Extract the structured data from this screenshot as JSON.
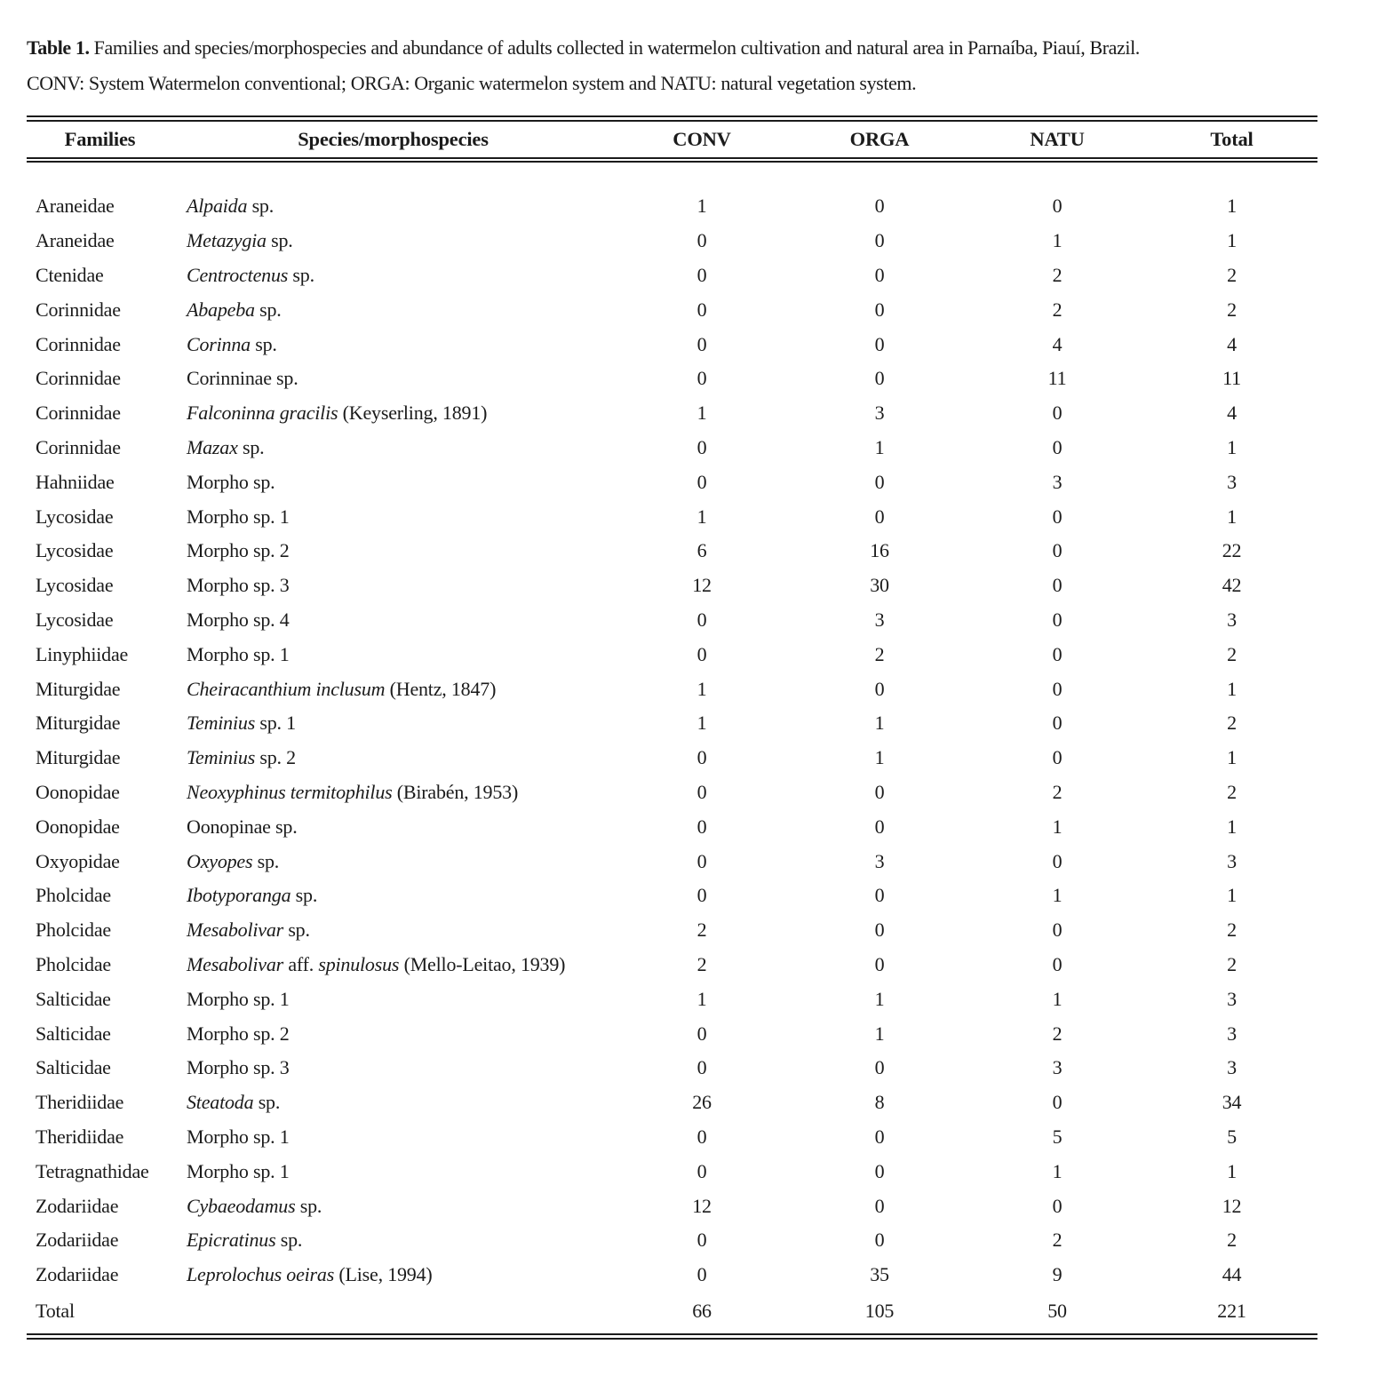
{
  "caption": {
    "label": "Table 1.",
    "line1": " Families and species/morphospecies and abundance of adults collected in watermelon cultivation and natural area in Parnaíba, Piauí, Brazil.",
    "line2": "CONV: System Watermelon conventional; ORGA: Organic watermelon system and NATU: natural vegetation system."
  },
  "table": {
    "headers": [
      "Families",
      "Species/morphospecies",
      "CONV",
      "ORGA",
      "NATU",
      "Total"
    ],
    "rows": [
      {
        "family": "Araneidae",
        "species": [
          [
            "Alpaida",
            true
          ],
          [
            " sp.",
            false
          ]
        ],
        "values": [
          "1",
          "0",
          "0",
          "1"
        ]
      },
      {
        "family": "Araneidae",
        "species": [
          [
            "Metazygia",
            true
          ],
          [
            " sp.",
            false
          ]
        ],
        "values": [
          "0",
          "0",
          "1",
          "1"
        ]
      },
      {
        "family": "Ctenidae",
        "species": [
          [
            "Centroctenus",
            true
          ],
          [
            " sp.",
            false
          ]
        ],
        "values": [
          "0",
          "0",
          "2",
          "2"
        ]
      },
      {
        "family": "Corinnidae",
        "species": [
          [
            "Abapeba",
            true
          ],
          [
            " sp.",
            false
          ]
        ],
        "values": [
          "0",
          "0",
          "2",
          "2"
        ]
      },
      {
        "family": "Corinnidae",
        "species": [
          [
            "Corinna",
            true
          ],
          [
            " sp.",
            false
          ]
        ],
        "values": [
          "0",
          "0",
          "4",
          "4"
        ]
      },
      {
        "family": "Corinnidae",
        "species": [
          [
            "Corinninae sp.",
            false
          ]
        ],
        "values": [
          "0",
          "0",
          "11",
          "11"
        ]
      },
      {
        "family": "Corinnidae",
        "species": [
          [
            "Falconinna gracilis",
            true
          ],
          [
            " (Keyserling, 1891)",
            false
          ]
        ],
        "values": [
          "1",
          "3",
          "0",
          "4"
        ]
      },
      {
        "family": "Corinnidae",
        "species": [
          [
            "Mazax",
            true
          ],
          [
            " sp.",
            false
          ]
        ],
        "values": [
          "0",
          "1",
          "0",
          "1"
        ]
      },
      {
        "family": "Hahniidae",
        "species": [
          [
            "Morpho sp.",
            false
          ]
        ],
        "values": [
          "0",
          "0",
          "3",
          "3"
        ]
      },
      {
        "family": "Lycosidae",
        "species": [
          [
            "Morpho sp. 1",
            false
          ]
        ],
        "values": [
          "1",
          "0",
          "0",
          "1"
        ]
      },
      {
        "family": "Lycosidae",
        "species": [
          [
            "Morpho sp. 2",
            false
          ]
        ],
        "values": [
          "6",
          "16",
          "0",
          "22"
        ]
      },
      {
        "family": "Lycosidae",
        "species": [
          [
            "Morpho sp. 3",
            false
          ]
        ],
        "values": [
          "12",
          "30",
          "0",
          "42"
        ]
      },
      {
        "family": "Lycosidae",
        "species": [
          [
            "Morpho sp. 4",
            false
          ]
        ],
        "values": [
          "0",
          "3",
          "0",
          "3"
        ]
      },
      {
        "family": "Linyphiidae",
        "species": [
          [
            "Morpho sp. 1",
            false
          ]
        ],
        "values": [
          "0",
          "2",
          "0",
          "2"
        ]
      },
      {
        "family": "Miturgidae",
        "species": [
          [
            "Cheiracanthium inclusum",
            true
          ],
          [
            " (Hentz, 1847)",
            false
          ]
        ],
        "values": [
          "1",
          "0",
          "0",
          "1"
        ]
      },
      {
        "family": "Miturgidae",
        "species": [
          [
            "Teminius",
            true
          ],
          [
            " sp. 1",
            false
          ]
        ],
        "values": [
          "1",
          "1",
          "0",
          "2"
        ]
      },
      {
        "family": "Miturgidae",
        "species": [
          [
            "Teminius",
            true
          ],
          [
            " sp. 2",
            false
          ]
        ],
        "values": [
          "0",
          "1",
          "0",
          "1"
        ]
      },
      {
        "family": "Oonopidae",
        "species": [
          [
            "Neoxyphinus termitophilus",
            true
          ],
          [
            " (Birabén, 1953)",
            false
          ]
        ],
        "values": [
          "0",
          "0",
          "2",
          "2"
        ]
      },
      {
        "family": "Oonopidae",
        "species": [
          [
            "Oonopinae sp.",
            false
          ]
        ],
        "values": [
          "0",
          "0",
          "1",
          "1"
        ]
      },
      {
        "family": "Oxyopidae",
        "species": [
          [
            "Oxyopes",
            true
          ],
          [
            " sp.",
            false
          ]
        ],
        "values": [
          "0",
          "3",
          "0",
          "3"
        ]
      },
      {
        "family": "Pholcidae",
        "species": [
          [
            "Ibotyporanga",
            true
          ],
          [
            " sp.",
            false
          ]
        ],
        "values": [
          "0",
          "0",
          "1",
          "1"
        ]
      },
      {
        "family": "Pholcidae",
        "species": [
          [
            "Mesabolivar",
            true
          ],
          [
            " sp.",
            false
          ]
        ],
        "values": [
          "2",
          "0",
          "0",
          "2"
        ]
      },
      {
        "family": "Pholcidae",
        "species": [
          [
            "Mesabolivar",
            true
          ],
          [
            " aff. ",
            false
          ],
          [
            "spinulosus",
            true
          ],
          [
            " (Mello-Leitao, 1939)",
            false
          ]
        ],
        "values": [
          "2",
          "0",
          "0",
          "2"
        ]
      },
      {
        "family": "Salticidae",
        "species": [
          [
            "Morpho sp. 1",
            false
          ]
        ],
        "values": [
          "1",
          "1",
          "1",
          "3"
        ]
      },
      {
        "family": "Salticidae",
        "species": [
          [
            "Morpho sp. 2",
            false
          ]
        ],
        "values": [
          "0",
          "1",
          "2",
          "3"
        ]
      },
      {
        "family": "Salticidae",
        "species": [
          [
            "Morpho sp. 3",
            false
          ]
        ],
        "values": [
          "0",
          "0",
          "3",
          "3"
        ]
      },
      {
        "family": "Theridiidae",
        "species": [
          [
            "Steatoda",
            true
          ],
          [
            " sp.",
            false
          ]
        ],
        "values": [
          "26",
          "8",
          "0",
          "34"
        ]
      },
      {
        "family": "Theridiidae",
        "species": [
          [
            "Morpho sp. 1",
            false
          ]
        ],
        "values": [
          "0",
          "0",
          "5",
          "5"
        ]
      },
      {
        "family": "Tetragnathidae",
        "species": [
          [
            "Morpho sp. 1",
            false
          ]
        ],
        "values": [
          "0",
          "0",
          "1",
          "1"
        ]
      },
      {
        "family": "Zodariidae",
        "species": [
          [
            "Cybaeodamus",
            true
          ],
          [
            " sp.",
            false
          ]
        ],
        "values": [
          "12",
          "0",
          "0",
          "12"
        ]
      },
      {
        "family": "Zodariidae",
        "species": [
          [
            "Epicratinus",
            true
          ],
          [
            " sp.",
            false
          ]
        ],
        "values": [
          "0",
          "0",
          "2",
          "2"
        ]
      },
      {
        "family": "Zodariidae",
        "species": [
          [
            "Leprolochus oeiras",
            true
          ],
          [
            " (Lise, 1994)",
            false
          ]
        ],
        "values": [
          "0",
          "35",
          "9",
          "44"
        ]
      }
    ],
    "total_row": {
      "label": "Total",
      "values": [
        "66",
        "105",
        "50",
        "221"
      ]
    }
  }
}
